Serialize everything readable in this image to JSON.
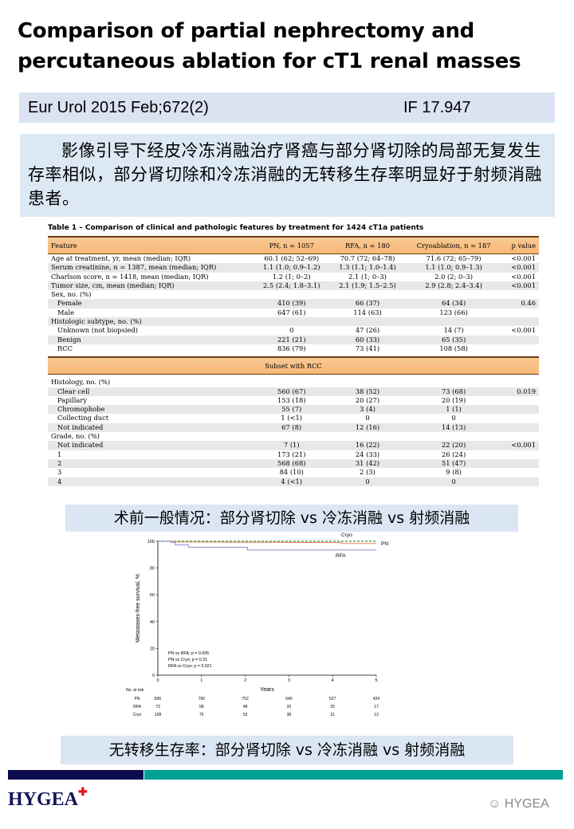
{
  "title": "Comparison of partial nephrectomy and percutaneous ablation for cT1 renal masses",
  "citation": {
    "journal": "Eur Urol 2015 Feb;672(2)",
    "impact_factor": "IF 17.947"
  },
  "summary": "影像引导下经皮冷冻消融治疗肾癌与部分肾切除的局部无复发生存率相似，部分肾切除和冷冻消融的无转移生存率明显好于射频消融患者。",
  "table": {
    "title": "Table 1 – Comparison of clinical and pathologic features by treatment for 1424 cT1a patients",
    "headers": [
      "Feature",
      "PN, n = 1057",
      "RFA, n = 180",
      "Cryoablation, n = 187",
      "p value"
    ],
    "rows": [
      {
        "label": "Age at treatment, yr, mean (median; IQR)",
        "indent": false,
        "cells": [
          "60.1 (62; 52–69)",
          "70.7 (72; 64–78)",
          "71.6 (72; 65–79)",
          "<0.001"
        ]
      },
      {
        "label": "Serum creatinine, n = 1387, mean (median; IQR)",
        "indent": false,
        "cells": [
          "1.1 (1.0; 0.9–1.2)",
          "1.3 (1.1; 1.0–1.4)",
          "1.1 (1.0; 0.9–1.3)",
          "<0.001"
        ]
      },
      {
        "label": "Charlson score, n = 1418, mean (median; IQR)",
        "indent": false,
        "cells": [
          "1.2 (1; 0–2)",
          "2.1 (1; 0–3)",
          "2.0 (2; 0–3)",
          "<0.001"
        ]
      },
      {
        "label": "Tumor size, cm, mean (median; IQR)",
        "indent": false,
        "cells": [
          "2.5 (2.4; 1.8–3.1)",
          "2.1 (1.9; 1.5–2.5)",
          "2.9 (2.8; 2.4–3.4)",
          "<0.001"
        ]
      },
      {
        "label": "Sex, no. (%)",
        "indent": false,
        "cells": [
          "",
          "",
          "",
          ""
        ]
      },
      {
        "label": "Female",
        "indent": true,
        "cells": [
          "410 (39)",
          "66 (37)",
          "64 (34)",
          "0.46"
        ]
      },
      {
        "label": "Male",
        "indent": true,
        "cells": [
          "647 (61)",
          "114 (63)",
          "123 (66)",
          ""
        ]
      },
      {
        "label": "Histologic subtype, no. (%)",
        "indent": false,
        "cells": [
          "",
          "",
          "",
          ""
        ]
      },
      {
        "label": "Unknown (not biopsied)",
        "indent": true,
        "cells": [
          "0",
          "47 (26)",
          "14 (7)",
          "<0.001"
        ]
      },
      {
        "label": "Benign",
        "indent": true,
        "cells": [
          "221 (21)",
          "60 (33)",
          "65 (35)",
          ""
        ]
      },
      {
        "label": "RCC",
        "indent": true,
        "cells": [
          "836 (79)",
          "73 (41)",
          "108 (58)",
          ""
        ]
      }
    ],
    "subset_header": "Subset with RCC",
    "subset_rows": [
      {
        "label": "Histology, no. (%)",
        "indent": false,
        "cells": [
          "",
          "",
          "",
          ""
        ]
      },
      {
        "label": "Clear cell",
        "indent": true,
        "cells": [
          "560 (67)",
          "38 (52)",
          "73 (68)",
          "0.019"
        ]
      },
      {
        "label": "Papillary",
        "indent": true,
        "cells": [
          "153 (18)",
          "20 (27)",
          "20 (19)",
          ""
        ]
      },
      {
        "label": "Chromophobe",
        "indent": true,
        "cells": [
          "55 (7)",
          "3 (4)",
          "1 (1)",
          ""
        ]
      },
      {
        "label": "Collecting duct",
        "indent": true,
        "cells": [
          "1 (<1)",
          "0",
          "0",
          ""
        ]
      },
      {
        "label": "Not indicated",
        "indent": true,
        "cells": [
          "67 (8)",
          "12 (16)",
          "14 (13)",
          ""
        ]
      },
      {
        "label": "Grade, no. (%)",
        "indent": false,
        "cells": [
          "",
          "",
          "",
          ""
        ]
      },
      {
        "label": "Not indicated",
        "indent": true,
        "cells": [
          "7 (1)",
          "16 (22)",
          "22 (20)",
          "<0.001"
        ]
      },
      {
        "label": "1",
        "indent": true,
        "cells": [
          "173 (21)",
          "24 (33)",
          "26 (24)",
          ""
        ]
      },
      {
        "label": "2",
        "indent": true,
        "cells": [
          "568 (68)",
          "31 (42)",
          "51 (47)",
          ""
        ]
      },
      {
        "label": "3",
        "indent": true,
        "cells": [
          "84 (10)",
          "2 (3)",
          "9 (8)",
          ""
        ]
      },
      {
        "label": "4",
        "indent": true,
        "cells": [
          "4 (<1)",
          "0",
          "0",
          ""
        ]
      }
    ]
  },
  "caption1": "术前一般情况：部分肾切除 vs 冷冻消融 vs 射频消融",
  "chart_data": {
    "type": "line",
    "xlabel": "Years",
    "ylabel": "Metastases-free survival, %",
    "xlim": [
      0,
      5
    ],
    "ylim": [
      0,
      100
    ],
    "xticks": [
      0,
      1,
      2,
      3,
      4,
      5
    ],
    "yticks": [
      0,
      20,
      40,
      60,
      80,
      100
    ],
    "grid": false,
    "series": [
      {
        "name": "Cryo",
        "color": "#3a9a3a",
        "dashed": true,
        "x": [
          0,
          5
        ],
        "y": [
          100,
          100
        ]
      },
      {
        "name": "PN",
        "color": "#e07040",
        "dashed": false,
        "x": [
          0,
          0.4,
          0.4,
          4.2,
          4.2,
          5
        ],
        "y": [
          100,
          100,
          99.5,
          99,
          98.3,
          98.3
        ]
      },
      {
        "name": "RFA",
        "color": "#8080c8",
        "dashed": false,
        "x": [
          0,
          0.3,
          0.3,
          0.4,
          0.4,
          0.7,
          0.7,
          2.05,
          2.05,
          5
        ],
        "y": [
          100,
          100,
          99,
          99,
          97.2,
          97.2,
          95.6,
          95.6,
          93.5,
          93.5
        ]
      }
    ],
    "annotations": [
      "PN vs RFA; p = 0.005",
      "PN vs Cryo; p = 0.31",
      "RFA vs Cryo; p = 0.021"
    ],
    "risk_table": {
      "label": "No. at risk",
      "rows": [
        {
          "name": "PN",
          "values": [
            "836",
            "799",
            "752",
            "640",
            "527",
            "424"
          ]
        },
        {
          "name": "RFA",
          "values": [
            "73",
            "58",
            "48",
            "33",
            "25",
            "17"
          ]
        },
        {
          "name": "Cryo",
          "values": [
            "108",
            "75",
            "53",
            "38",
            "21",
            "13"
          ]
        }
      ]
    }
  },
  "caption2": "无转移生存率：部分肾切除 vs 冷冻消融 vs 射频消融",
  "footer": {
    "logo": "HYGEA",
    "watermark": "HYGEA",
    "colors": {
      "navy": "#0b0b4e",
      "teal": "#00a096"
    }
  }
}
